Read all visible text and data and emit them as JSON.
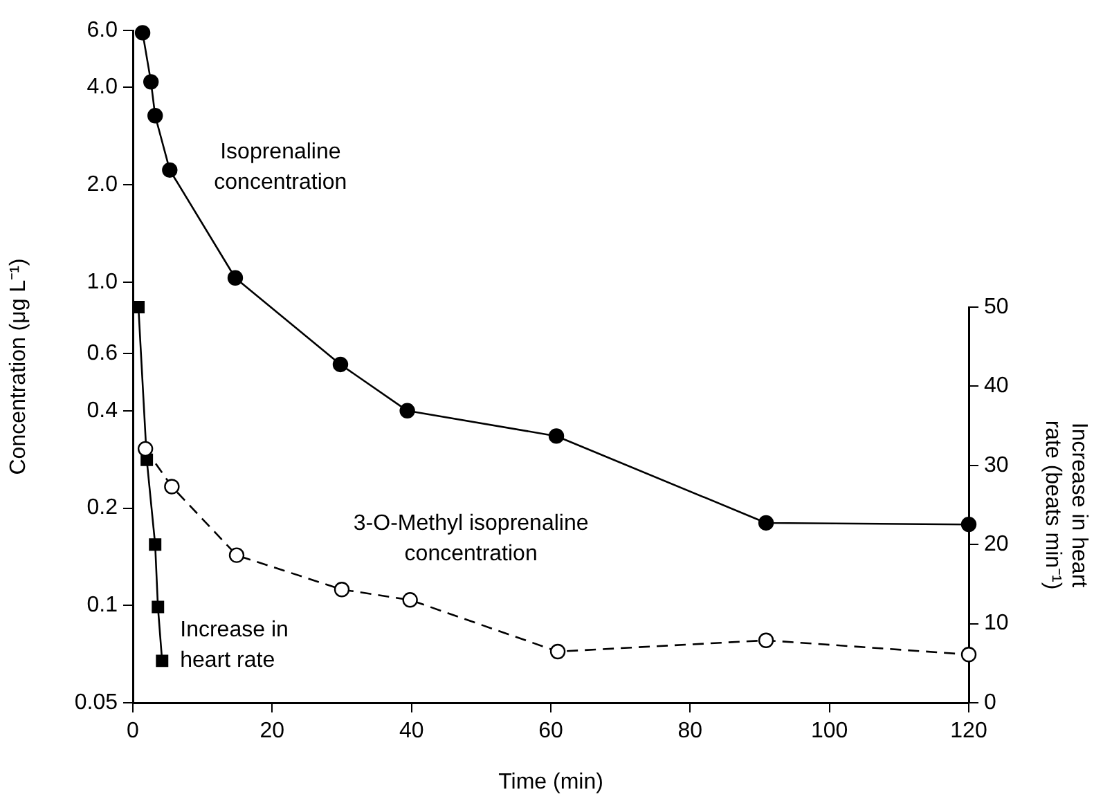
{
  "chart_data": {
    "type": "line",
    "xlabel": "Time (min)",
    "ylabel": "Concentration (μg L⁻¹)",
    "y2label": "Increase in heart rate (beats min⁻¹)",
    "xlim": [
      0,
      120
    ],
    "xticks": [
      0,
      20,
      40,
      60,
      80,
      100,
      120
    ],
    "ylim": [
      0.05,
      6.0
    ],
    "yticks": [
      0.05,
      0.1,
      0.2,
      0.4,
      0.6,
      {
        "value": 1,
        "label": "1.0"
      },
      {
        "value": 2,
        "label": "2.0"
      },
      {
        "value": 4,
        "label": "4.0"
      },
      {
        "value": 6,
        "label": "6.0"
      }
    ],
    "y2lim": [
      0,
      50
    ],
    "y2ticks": [
      0,
      10,
      20,
      30,
      40,
      50
    ],
    "log": "y",
    "grid": false,
    "legend": false,
    "series": [
      {
        "name": "Isoprenaline concentration",
        "color": "#000000",
        "marker": "circle",
        "line_style": "solid",
        "x": [
          1.4,
          2.6,
          3.2,
          5.3,
          14.7,
          29.8,
          39.4,
          60.8,
          90.9,
          120
        ],
        "values": [
          5.9,
          4.16,
          3.27,
          2.22,
          1.03,
          0.556,
          0.4,
          0.334,
          0.18,
          0.178
        ]
      },
      {
        "name": "3-O-Methyl isoprenaline concentration",
        "color": "#000000",
        "marker": "circle",
        "line_style": "dashed",
        "x": [
          1.8,
          5.6,
          14.9,
          30.0,
          39.8,
          61.0,
          90.9,
          120
        ],
        "values": [
          0.305,
          0.233,
          0.143,
          0.112,
          0.104,
          0.072,
          0.078,
          0.0705
        ]
      },
      {
        "name": "Increase in heart rate",
        "color": "#000000",
        "marker": "square",
        "line_style": "solid",
        "axis": "y2",
        "x": [
          0.8,
          2.0,
          3.2,
          3.6,
          4.2
        ],
        "values": [
          50,
          30.7,
          20,
          12.1,
          5.3
        ]
      }
    ]
  }
}
